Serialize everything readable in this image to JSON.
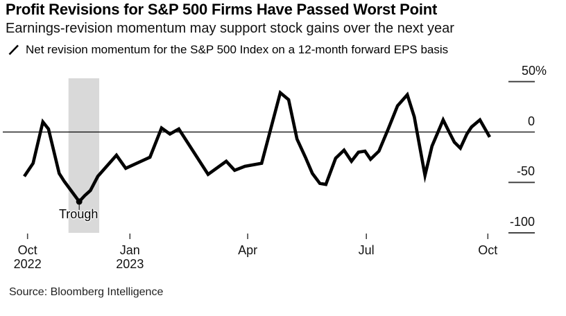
{
  "header": {
    "title": "Profit Revisions for S&P 500 Firms Have Passed Worst Point",
    "subtitle": "Earnings-revision momentum may support stock gains over the next year"
  },
  "legend": {
    "marker": "black-slash-line",
    "series_label": "Net revision momentum for the S&P 500 Index on a 12-month forward EPS basis"
  },
  "chart_data": {
    "type": "line",
    "series_name": "Net revision momentum for the S&P 500 Index on a 12-month forward EPS basis",
    "unit": "%",
    "line_color": "#000000",
    "axis_color": "#444444",
    "grid": "zero-line-only",
    "ylim": [
      -100,
      53
    ],
    "yticks": [
      {
        "label": "50%",
        "value": 50
      },
      {
        "label": "0",
        "value": 0
      },
      {
        "label": "-50",
        "value": -50
      },
      {
        "label": "-100",
        "value": -100
      }
    ],
    "xticks": [
      {
        "label": "Oct",
        "sublabel": "2022",
        "t": 0.007
      },
      {
        "label": "Jan",
        "sublabel": "2023",
        "t": 0.227
      },
      {
        "label": "Apr",
        "sublabel": "",
        "t": 0.48
      },
      {
        "label": "Jul",
        "sublabel": "",
        "t": 0.735
      },
      {
        "label": "Oct",
        "sublabel": "",
        "t": 0.996
      }
    ],
    "x_range_note": "t is fraction of timeline from Oct 2022 to Oct 2023",
    "band": {
      "from_t": 0.095,
      "to_t": 0.161,
      "color": "#d9d9d9"
    },
    "annotation": {
      "label": "Trough",
      "t": 0.118,
      "value": -69
    },
    "points": [
      [
        0.0,
        -44
      ],
      [
        0.019,
        -31
      ],
      [
        0.04,
        10
      ],
      [
        0.052,
        3
      ],
      [
        0.075,
        -41
      ],
      [
        0.086,
        -49
      ],
      [
        0.118,
        -69
      ],
      [
        0.13,
        -63
      ],
      [
        0.142,
        -58
      ],
      [
        0.158,
        -44
      ],
      [
        0.198,
        -23
      ],
      [
        0.218,
        -36
      ],
      [
        0.256,
        -28
      ],
      [
        0.27,
        -25
      ],
      [
        0.295,
        4
      ],
      [
        0.313,
        -2
      ],
      [
        0.332,
        3
      ],
      [
        0.395,
        -42
      ],
      [
        0.434,
        -29
      ],
      [
        0.452,
        -38
      ],
      [
        0.474,
        -34
      ],
      [
        0.51,
        -31
      ],
      [
        0.55,
        39
      ],
      [
        0.568,
        32
      ],
      [
        0.586,
        -7
      ],
      [
        0.604,
        -25
      ],
      [
        0.619,
        -41
      ],
      [
        0.635,
        -51
      ],
      [
        0.648,
        -52
      ],
      [
        0.669,
        -26
      ],
      [
        0.687,
        -18
      ],
      [
        0.703,
        -29
      ],
      [
        0.718,
        -20
      ],
      [
        0.732,
        -19
      ],
      [
        0.744,
        -27
      ],
      [
        0.762,
        -19
      ],
      [
        0.782,
        3
      ],
      [
        0.802,
        26
      ],
      [
        0.823,
        37
      ],
      [
        0.838,
        15
      ],
      [
        0.861,
        -43
      ],
      [
        0.876,
        -14
      ],
      [
        0.9,
        12
      ],
      [
        0.914,
        -1
      ],
      [
        0.924,
        -10
      ],
      [
        0.937,
        -16
      ],
      [
        0.951,
        -2
      ],
      [
        0.961,
        5
      ],
      [
        0.979,
        12
      ],
      [
        1.0,
        -5
      ]
    ]
  },
  "footer": {
    "source": "Source: Bloomberg Intelligence"
  }
}
